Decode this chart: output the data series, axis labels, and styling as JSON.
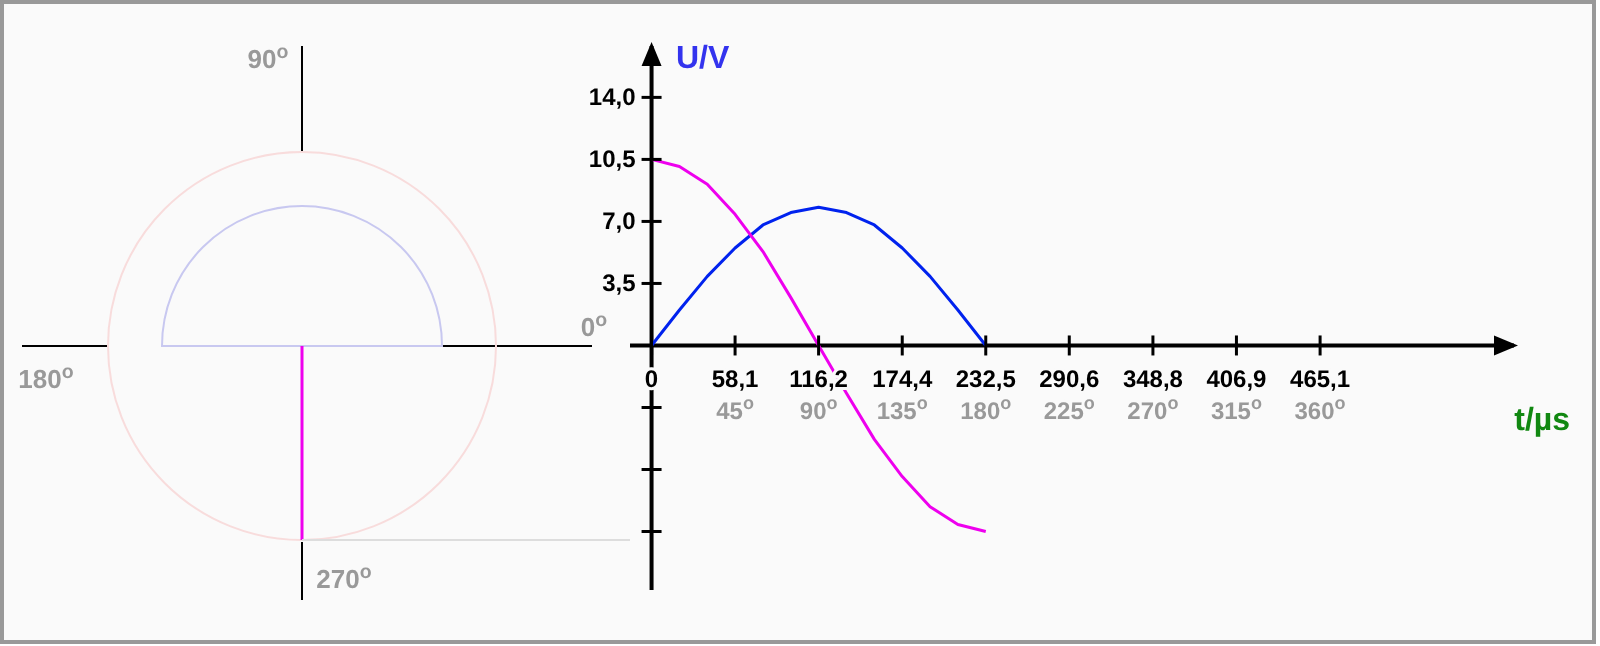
{
  "chart_data": {
    "type": "line",
    "xlabel": "t/µs",
    "ylabel": "U/V",
    "x": [
      0,
      19.4,
      38.75,
      58.1,
      77.5,
      96.9,
      116.2,
      135.6,
      155,
      174.4,
      193.75,
      213.1,
      232.5
    ],
    "series": [
      {
        "color": "#0022ee",
        "values": [
          0,
          2,
          3.9,
          5.5,
          6.8,
          7.5,
          7.8,
          7.5,
          6.8,
          5.5,
          3.9,
          2,
          0
        ]
      },
      {
        "color": "#ee00ee",
        "values": [
          10.5,
          10.1,
          9.1,
          7.4,
          5.3,
          2.7,
          0,
          -2.7,
          -5.3,
          -7.4,
          -9.1,
          -10.1,
          -10.5
        ]
      }
    ],
    "xlim": [
      -15,
      600
    ],
    "ylim": [
      -13.8,
      16.9
    ],
    "x2lim": [
      -11.6,
      464.5
    ],
    "xticks": [
      0,
      {
        "value": 58.1,
        "label": "58,1"
      },
      {
        "value": 116.2,
        "label": "116,2"
      },
      {
        "value": 174.4,
        "label": "174,4"
      },
      {
        "value": 232.5,
        "label": "232,5"
      },
      {
        "value": 290.6,
        "label": "290,6"
      },
      {
        "value": 348.8,
        "label": "348,8"
      },
      {
        "value": 406.9,
        "label": "406,9"
      },
      {
        "value": 465.1,
        "label": "465,1"
      }
    ],
    "x2ticks": [
      {
        "value": 45,
        "label": "45$^{o}$"
      },
      {
        "value": 90,
        "label": "90$^{o}$"
      },
      {
        "value": 135,
        "label": "135$^{o}$"
      },
      {
        "value": 180,
        "label": "180$^{o}$"
      },
      {
        "value": 225,
        "label": "225$^{o}$"
      },
      {
        "value": 270,
        "label": "270$^{o}$"
      },
      {
        "value": 315,
        "label": "315$^{o}$"
      },
      {
        "value": 360,
        "label": "360$^{o}$"
      }
    ],
    "yticks": [
      {
        "value": -10.5,
        "label": null
      },
      {
        "value": -7,
        "label": null
      },
      {
        "value": -3.5,
        "label": null
      },
      {
        "value": 3.5,
        "label": "3,5"
      },
      {
        "value": 7,
        "label": "7,0"
      },
      {
        "value": 10.5,
        "label": "10,5"
      },
      {
        "value": 14,
        "label": "14,0"
      }
    ],
    "annotations": [
      "0$^{o}$",
      "90$^{o}$",
      "180$^{o}$",
      "270$^{o}$"
    ],
    "grid": false,
    "marker": "none",
    "line_style": "solid"
  }
}
